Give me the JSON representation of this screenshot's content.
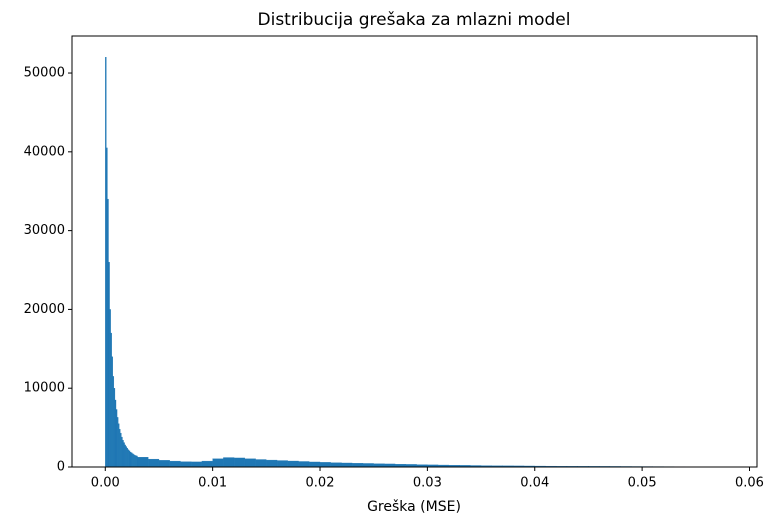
{
  "chart_data": {
    "type": "histogram",
    "title": "Distribucija grešaka za mlazni model",
    "xlabel": "Greška (MSE)",
    "color": "#1f77b4",
    "bins": [
      0,
      0.0001,
      0.0002,
      0.0003,
      0.0004,
      0.0005,
      0.0006,
      0.0007,
      0.0008,
      0.0009,
      0.001,
      0.0011,
      0.0012,
      0.0013,
      0.0014,
      0.0015,
      0.0016,
      0.0017,
      0.0018,
      0.0019,
      0.002,
      0.0021,
      0.0022,
      0.0023,
      0.0024,
      0.0025,
      0.0026,
      0.0027,
      0.0028,
      0.0029,
      0.003,
      0.004,
      0.005,
      0.006,
      0.007,
      0.008,
      0.009,
      0.01,
      0.011,
      0.012,
      0.013,
      0.014,
      0.015,
      0.016,
      0.017,
      0.018,
      0.019,
      0.02,
      0.021,
      0.022,
      0.023,
      0.024,
      0.025,
      0.026,
      0.027,
      0.028,
      0.029,
      0.03,
      0.031,
      0.032,
      0.033,
      0.034,
      0.035,
      0.036,
      0.037,
      0.038,
      0.039,
      0.04,
      0.041,
      0.042,
      0.043,
      0.044,
      0.045,
      0.046,
      0.047,
      0.048,
      0.049,
      0.05,
      0.051,
      0.052,
      0.053,
      0.054,
      0.055,
      0.056,
      0.057,
      0.058,
      0.059,
      0.06
    ],
    "counts": [
      52000,
      40500,
      34000,
      26000,
      20000,
      17000,
      14000,
      11500,
      10000,
      8500,
      7300,
      6300,
      5500,
      4800,
      4300,
      3800,
      3400,
      3100,
      2800,
      2600,
      2400,
      2200,
      2050,
      1900,
      1800,
      1700,
      1600,
      1500,
      1450,
      1400,
      1250,
      1000,
      850,
      750,
      680,
      650,
      750,
      1050,
      1200,
      1150,
      1050,
      950,
      880,
      820,
      760,
      700,
      640,
      590,
      550,
      510,
      480,
      450,
      420,
      390,
      360,
      330,
      300,
      270,
      250,
      230,
      210,
      190,
      175,
      160,
      150,
      140,
      130,
      120,
      110,
      100,
      95,
      90,
      85,
      80,
      75,
      70,
      65,
      60,
      55,
      50,
      45,
      42,
      40,
      37,
      35,
      32,
      30
    ],
    "xlim": [
      -0.0031,
      0.0607
    ],
    "ylim": [
      0,
      54700
    ],
    "xticks": [
      {
        "value": 0,
        "label": "0.00"
      },
      {
        "value": 0.01,
        "label": "0.01"
      },
      {
        "value": 0.02,
        "label": "0.02"
      },
      {
        "value": 0.03,
        "label": "0.03"
      },
      {
        "value": 0.04,
        "label": "0.04"
      },
      {
        "value": 0.05,
        "label": "0.05"
      },
      {
        "value": 0.06,
        "label": "0.06"
      }
    ],
    "yticks": [
      0,
      10000,
      20000,
      30000,
      40000,
      50000
    ]
  }
}
